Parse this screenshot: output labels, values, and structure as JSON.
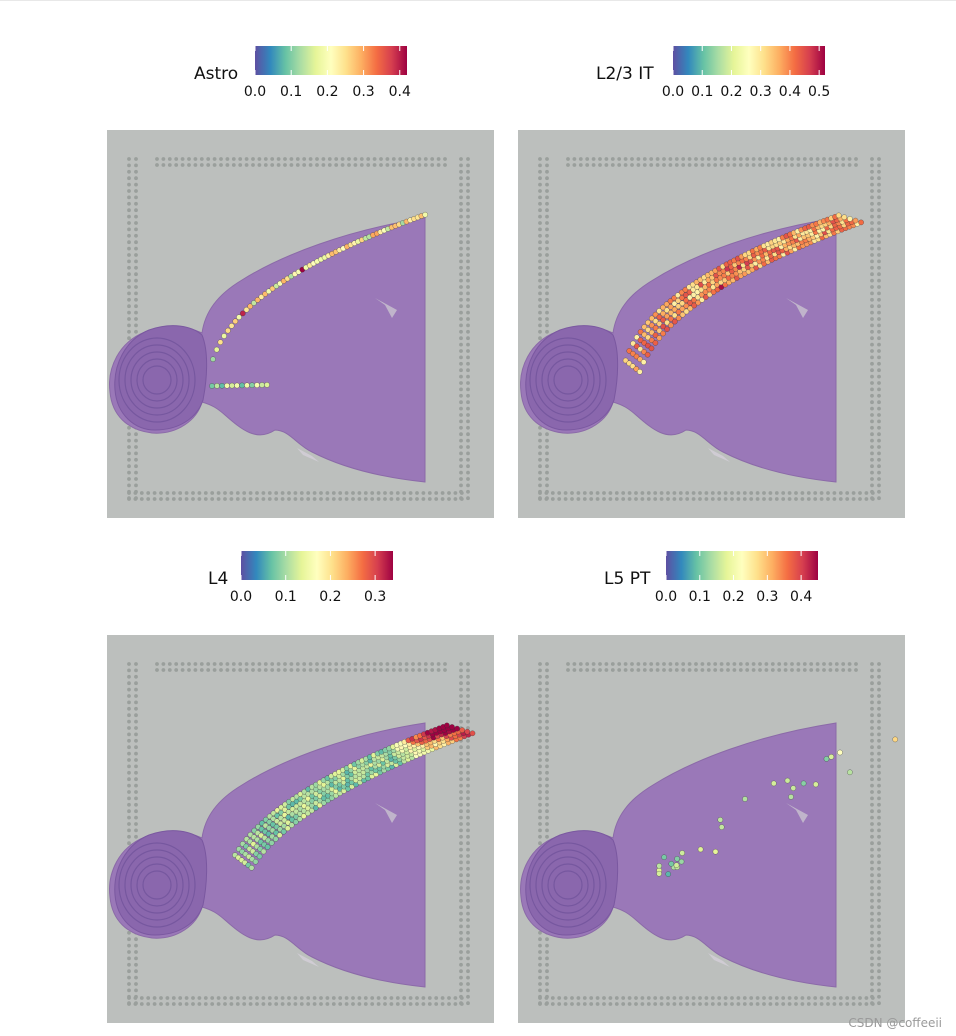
{
  "chart_data": [
    {
      "type": "spatial-heatmap",
      "title": "Astro",
      "legend_title": "Astro",
      "colormap": "Spectral (reversed)",
      "range": [
        0.0,
        0.42
      ],
      "ticks": [
        0.0,
        0.1,
        0.2,
        0.3,
        0.4
      ],
      "tick_labels": [
        "0.0",
        "0.1",
        "0.2",
        "0.3",
        "0.4"
      ],
      "pattern": "thin outer cortical (pial) border"
    },
    {
      "type": "spatial-heatmap",
      "title": "L2/3 IT",
      "legend_title": "L2/3 IT",
      "colormap": "Spectral (reversed)",
      "range": [
        0.0,
        0.52
      ],
      "ticks": [
        0.0,
        0.1,
        0.2,
        0.3,
        0.4,
        0.5
      ],
      "tick_labels": [
        "0.0",
        "0.1",
        "0.2",
        "0.3",
        "0.4",
        "0.5"
      ],
      "pattern": "superficial cortical layer band"
    },
    {
      "type": "spatial-heatmap",
      "title": "L4",
      "legend_title": "L4",
      "colormap": "Spectral (reversed)",
      "range": [
        0.0,
        0.34
      ],
      "ticks": [
        0.0,
        0.1,
        0.2,
        0.3
      ],
      "tick_labels": [
        "0.0",
        "0.1",
        "0.2",
        "0.3"
      ],
      "pattern": "middle cortical layer band"
    },
    {
      "type": "spatial-heatmap",
      "title": "L5 PT",
      "legend_title": "L5 PT",
      "colormap": "Spectral (reversed)",
      "range": [
        0.0,
        0.45
      ],
      "ticks": [
        0.0,
        0.1,
        0.2,
        0.3,
        0.4
      ],
      "tick_labels": [
        "0.0",
        "0.1",
        "0.2",
        "0.3",
        "0.4"
      ],
      "pattern": "sparse deep cortical layer spots"
    }
  ],
  "watermark": "CSDN @coffeeii",
  "colors": {
    "slide_background": "#bcbfbd",
    "tissue": "#9a78b8",
    "fiducial": "#8f9592",
    "colormap_stops": [
      "#5e4fa2",
      "#3288bd",
      "#66c2a5",
      "#abdda4",
      "#e6f598",
      "#ffffbf",
      "#fee08b",
      "#fdae61",
      "#f46d43",
      "#d53e4f",
      "#9e0142"
    ]
  }
}
